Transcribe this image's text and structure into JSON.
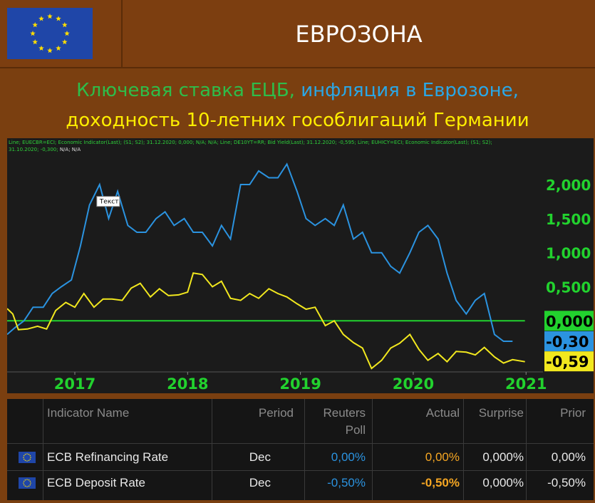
{
  "header": {
    "title": "ЕВРОЗОНА"
  },
  "subtitle": {
    "part1": "Ключевая ставка ЕЦБ,",
    "part2": " инфляция в Еврозоне,",
    "line2": "доходность 10-летних гособлигаций Германии"
  },
  "legend": {
    "line1": "Line; EUECBR=ECI; Economic Indicator(Last); (S1; S2); 31.12.2020; 0,000; N/A; N/A; Line; DE10YT=RR; Bid Yield(Last); 31.12.2020; -0,595; Line; EUHICY=ECI; Economic Indicator(Last); (S1; S2);",
    "line2": "31.10.2020; -0,300;",
    "line2_na": " N/A; N/A"
  },
  "annotation": "Текст",
  "colors": {
    "ecb_rate": "#22d22e",
    "inflation": "#2b93e0",
    "bund_yield": "#f2e81e",
    "header_bg": "#7c3e10",
    "flag_blue": "#1f46a8"
  },
  "chart_data": {
    "type": "line",
    "title": "",
    "xlabel": "",
    "ylabel": "",
    "x_ticks": [
      "2017",
      "2018",
      "2019",
      "2020",
      "2021"
    ],
    "y_ticks": [
      "2,000",
      "1,500",
      "1,000",
      "0,500",
      "0,000"
    ],
    "ylim": [
      -0.75,
      2.45
    ],
    "xlim": [
      2016.4,
      2021.15
    ],
    "grid": false,
    "current_labels": [
      {
        "series": "ecb",
        "text": "0,000",
        "value": 0.0
      },
      {
        "series": "inflation",
        "text": "-0,30",
        "value": -0.3
      },
      {
        "series": "bund",
        "text": "-0,59",
        "value": -0.595
      }
    ],
    "series": [
      {
        "key": "ecb",
        "points": [
          [
            2016.4,
            0.0
          ],
          [
            2020.99,
            0.0
          ]
        ]
      },
      {
        "key": "inflation",
        "points": [
          [
            2016.4,
            -0.2
          ],
          [
            2016.47,
            -0.1
          ],
          [
            2016.55,
            0.0
          ],
          [
            2016.63,
            0.2
          ],
          [
            2016.72,
            0.2
          ],
          [
            2016.8,
            0.4
          ],
          [
            2016.88,
            0.5
          ],
          [
            2016.97,
            0.6
          ],
          [
            2017.05,
            1.1
          ],
          [
            2017.13,
            1.7
          ],
          [
            2017.22,
            2.0
          ],
          [
            2017.3,
            1.5
          ],
          [
            2017.38,
            1.9
          ],
          [
            2017.47,
            1.4
          ],
          [
            2017.55,
            1.3
          ],
          [
            2017.63,
            1.3
          ],
          [
            2017.72,
            1.5
          ],
          [
            2017.8,
            1.6
          ],
          [
            2017.88,
            1.4
          ],
          [
            2017.97,
            1.5
          ],
          [
            2018.05,
            1.3
          ],
          [
            2018.13,
            1.3
          ],
          [
            2018.22,
            1.1
          ],
          [
            2018.3,
            1.4
          ],
          [
            2018.38,
            1.2
          ],
          [
            2018.47,
            2.0
          ],
          [
            2018.55,
            2.0
          ],
          [
            2018.63,
            2.2
          ],
          [
            2018.72,
            2.1
          ],
          [
            2018.8,
            2.1
          ],
          [
            2018.88,
            2.3
          ],
          [
            2018.97,
            1.9
          ],
          [
            2019.05,
            1.5
          ],
          [
            2019.13,
            1.4
          ],
          [
            2019.22,
            1.5
          ],
          [
            2019.3,
            1.4
          ],
          [
            2019.38,
            1.7
          ],
          [
            2019.47,
            1.2
          ],
          [
            2019.55,
            1.3
          ],
          [
            2019.63,
            1.0
          ],
          [
            2019.72,
            1.0
          ],
          [
            2019.8,
            0.8
          ],
          [
            2019.88,
            0.7
          ],
          [
            2019.97,
            1.0
          ],
          [
            2020.05,
            1.3
          ],
          [
            2020.13,
            1.4
          ],
          [
            2020.22,
            1.2
          ],
          [
            2020.3,
            0.7
          ],
          [
            2020.38,
            0.3
          ],
          [
            2020.47,
            0.1
          ],
          [
            2020.55,
            0.3
          ],
          [
            2020.63,
            0.4
          ],
          [
            2020.72,
            -0.2
          ],
          [
            2020.8,
            -0.3
          ],
          [
            2020.88,
            -0.3
          ]
        ]
      },
      {
        "key": "bund",
        "points": [
          [
            2016.4,
            0.18
          ],
          [
            2016.45,
            0.1
          ],
          [
            2016.5,
            -0.13
          ],
          [
            2016.58,
            -0.12
          ],
          [
            2016.67,
            -0.08
          ],
          [
            2016.75,
            -0.12
          ],
          [
            2016.83,
            0.15
          ],
          [
            2016.92,
            0.27
          ],
          [
            2017.0,
            0.2
          ],
          [
            2017.08,
            0.4
          ],
          [
            2017.17,
            0.2
          ],
          [
            2017.25,
            0.32
          ],
          [
            2017.33,
            0.32
          ],
          [
            2017.42,
            0.3
          ],
          [
            2017.5,
            0.48
          ],
          [
            2017.58,
            0.55
          ],
          [
            2017.67,
            0.35
          ],
          [
            2017.75,
            0.47
          ],
          [
            2017.83,
            0.37
          ],
          [
            2017.92,
            0.38
          ],
          [
            2018.0,
            0.42
          ],
          [
            2018.05,
            0.7
          ],
          [
            2018.13,
            0.68
          ],
          [
            2018.22,
            0.5
          ],
          [
            2018.3,
            0.58
          ],
          [
            2018.38,
            0.33
          ],
          [
            2018.47,
            0.3
          ],
          [
            2018.55,
            0.4
          ],
          [
            2018.63,
            0.33
          ],
          [
            2018.72,
            0.47
          ],
          [
            2018.8,
            0.4
          ],
          [
            2018.88,
            0.35
          ],
          [
            2018.97,
            0.25
          ],
          [
            2019.05,
            0.17
          ],
          [
            2019.13,
            0.2
          ],
          [
            2019.22,
            -0.07
          ],
          [
            2019.3,
            0.0
          ],
          [
            2019.38,
            -0.2
          ],
          [
            2019.47,
            -0.32
          ],
          [
            2019.55,
            -0.4
          ],
          [
            2019.63,
            -0.7
          ],
          [
            2019.72,
            -0.58
          ],
          [
            2019.8,
            -0.4
          ],
          [
            2019.88,
            -0.33
          ],
          [
            2019.97,
            -0.2
          ],
          [
            2020.05,
            -0.42
          ],
          [
            2020.13,
            -0.58
          ],
          [
            2020.22,
            -0.48
          ],
          [
            2020.3,
            -0.6
          ],
          [
            2020.38,
            -0.45
          ],
          [
            2020.47,
            -0.46
          ],
          [
            2020.55,
            -0.5
          ],
          [
            2020.63,
            -0.39
          ],
          [
            2020.72,
            -0.53
          ],
          [
            2020.8,
            -0.62
          ],
          [
            2020.88,
            -0.57
          ],
          [
            2020.99,
            -0.6
          ]
        ]
      }
    ]
  },
  "table": {
    "headers": {
      "name": "Indicator Name",
      "period": "Period",
      "poll1": "Reuters",
      "poll2": "Poll",
      "actual": "Actual",
      "surprise": "Surprise",
      "prior": "Prior"
    },
    "rows": [
      {
        "name": "ECB Refinancing Rate",
        "period": "Dec",
        "poll": "0,00%",
        "actual": "0,00%",
        "surprise": "0,000%",
        "prior": "0,00%"
      },
      {
        "name": "ECB Deposit Rate",
        "period": "Dec",
        "poll": "-0,50%",
        "actual": "-0,50%",
        "surprise": "0,000%",
        "prior": "-0,50%"
      }
    ],
    "colors": {
      "poll": "#2b93e0",
      "actual": "#f5a623",
      "text": "#e8e8e8",
      "header": "#8a8a8a"
    }
  }
}
